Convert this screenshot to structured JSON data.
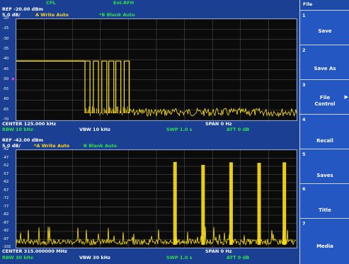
{
  "top_bar": {
    "cpl_label": "CPL",
    "ext_label": "Ext.RFH"
  },
  "upper_trace": {
    "ref_text": "REF  -20.00 dBm",
    "scale_text": "5.0 dB/",
    "trace_a": "A Write Auto",
    "trace_b": "*B Blank Auto",
    "y_ticks": [
      "-20",
      "-25",
      "-30",
      "-35",
      "-40",
      "-45",
      "-50",
      "-55",
      "-60",
      "-65",
      "-70"
    ],
    "center_text": "CENTER 125.000 kHz",
    "span_text": "SPAN 0 Hz",
    "rbw_text": "RBW 10 kHz",
    "vbw_text": "VBW 10 kHz",
    "swp_text": "SWP 1.0 s",
    "att_text": "ATT 0 dB"
  },
  "lower_trace": {
    "ref_text": "REF  -42.00 dBm",
    "scale_text": "5.0 dB/",
    "trace_a": "*A Write Auto",
    "trace_b": "B Blank Auto",
    "y_ticks": [
      "-42",
      "-47",
      "-52",
      "-57",
      "-62",
      "-67",
      "-72",
      "-77",
      "-82",
      "-87",
      "-92",
      "-97",
      "-102"
    ],
    "center_text": "CENTER 315.000000 MHz",
    "span_text": "SPAN 0 Hz",
    "rbw_text": "RBW 30 kHz",
    "vbw_text": "VBW 30 kHz",
    "swp_text": "SWP 1.0 s",
    "att_text": "ATT 0 dB"
  },
  "menu": {
    "title": "File",
    "keys": [
      {
        "num": "1",
        "label": "Save"
      },
      {
        "num": "2",
        "label": "Save As"
      },
      {
        "num": "3",
        "label": "File Control",
        "label_line1": "File",
        "label_line2": "Control"
      },
      {
        "num": "4",
        "label": "Recall"
      },
      {
        "num": "5",
        "label": "Saves"
      },
      {
        "num": "6",
        "label": "Title"
      },
      {
        "num": "7",
        "label": "Media"
      }
    ]
  },
  "colors": {
    "trace": "#ffe21a",
    "grid": "#5a5a5a",
    "text_green": "#2de04a",
    "softkey": "#2457c2"
  }
}
